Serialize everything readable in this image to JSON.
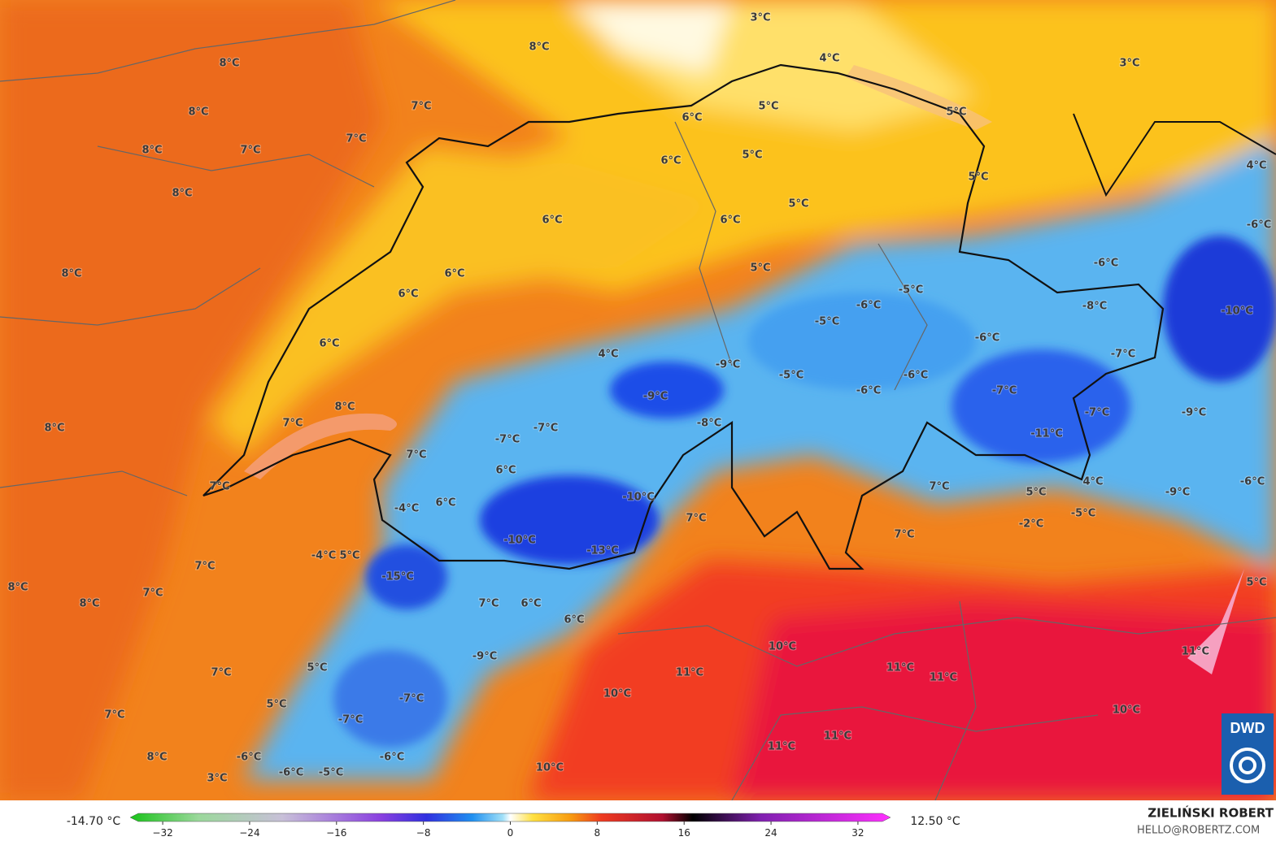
{
  "map": {
    "labels": [
      "8°C",
      "8°C",
      "8°C",
      "7°C",
      "8°C",
      "7°C",
      "7°C",
      "8°C",
      "8°C",
      "3°C",
      "4°C",
      "3°C",
      "5°C",
      "6°C",
      "5°C",
      "5°C",
      "6°C",
      "5°C",
      "4°C",
      "5°C",
      "6°C",
      "6°C",
      "-6°C",
      "5°C",
      "6°C",
      "-6°C",
      "6°C",
      "-5°C",
      "-6°C",
      "-8°C",
      "-10°C",
      "6°C",
      "-5°C",
      "-6°C",
      "4°C",
      "-9°C",
      "-7°C",
      "-5°C",
      "-6°C",
      "-6°C",
      "-7°C",
      "-9°C",
      "8°C",
      "8°C",
      "7°C",
      "-8°C",
      "-7°C",
      "-9°C",
      "-7°C",
      "-11°C",
      "-7°C",
      "7°C",
      "6°C",
      "7°C",
      "6°C",
      "7°C",
      "5°C",
      "4°C",
      "-9°C",
      "-6°C",
      "-10°C",
      "-4°C",
      "7°C",
      "-2°C",
      "-5°C",
      "7°C",
      "-10°C",
      "-13°C",
      "-4°C",
      "5°C",
      "7°C",
      "-15°C",
      "7°C",
      "8°C",
      "8°C",
      "5°C",
      "7°C",
      "6°C",
      "6°C",
      "10°C",
      "11°C",
      "-9°C",
      "7°C",
      "5°C",
      "11°C",
      "11°C",
      "11°C",
      "10°C",
      "-7°C",
      "5°C",
      "7°C",
      "-7°C",
      "10°C",
      "11°C",
      "11°C",
      "8°C",
      "-6°C",
      "-6°C",
      "-6°C",
      "-5°C",
      "10°C",
      "3°C"
    ],
    "logo": "DWD",
    "legend": {
      "min_label": "-14.70 °C",
      "max_label": "12.50 °C",
      "lim": [
        -35,
        35
      ],
      "ticks": [
        {
          "value": -32,
          "label": "−32"
        },
        {
          "value": -24,
          "label": "−24"
        },
        {
          "value": -16,
          "label": "−16"
        },
        {
          "value": -8,
          "label": "−8"
        },
        0,
        8,
        16,
        24,
        32
      ]
    },
    "credit": {
      "name": "ZIELIŃSKI ROBERT",
      "email": "HELLO@ROBERTZ.COM"
    }
  }
}
